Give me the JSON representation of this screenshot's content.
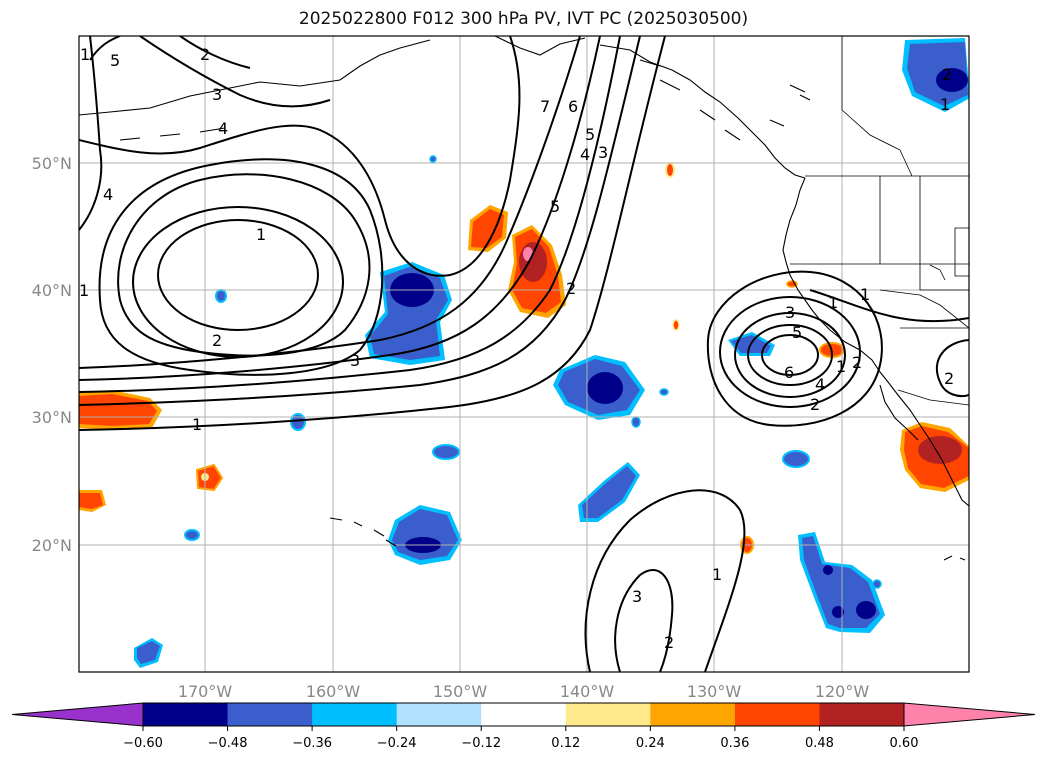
{
  "title": "2025022800 F012 300 hPa PV, IVT PC (2025030500)",
  "lat_labels": [
    "50°N",
    "40°N",
    "30°N",
    "20°N"
  ],
  "lon_labels": [
    "170°W",
    "160°W",
    "150°W",
    "140°W",
    "130°W",
    "120°W"
  ],
  "colorbar": {
    "ticks": [
      "−0.60",
      "−0.48",
      "−0.36",
      "−0.24",
      "−0.12",
      "0.12",
      "0.24",
      "0.36",
      "0.48",
      "0.60"
    ],
    "under_color": "#9932cc",
    "colors": [
      "#00008b",
      "#3a5fcd",
      "#00bfff",
      "#b0e2ff",
      "#ffffff",
      "#ffe98a",
      "#ffa500",
      "#ff4500",
      "#b22222"
    ],
    "over_color": "#ff82ab"
  },
  "contour_labels": [
    "1",
    "2",
    "3",
    "4",
    "5",
    "6",
    "7",
    "2",
    "3",
    "1",
    "4",
    "1",
    "2",
    "1",
    "2",
    "3",
    "4",
    "5",
    "1",
    "3",
    "5",
    "6",
    "4",
    "1",
    "2",
    "2",
    "1",
    "1",
    "2",
    "3",
    "2",
    "1",
    "5"
  ]
}
